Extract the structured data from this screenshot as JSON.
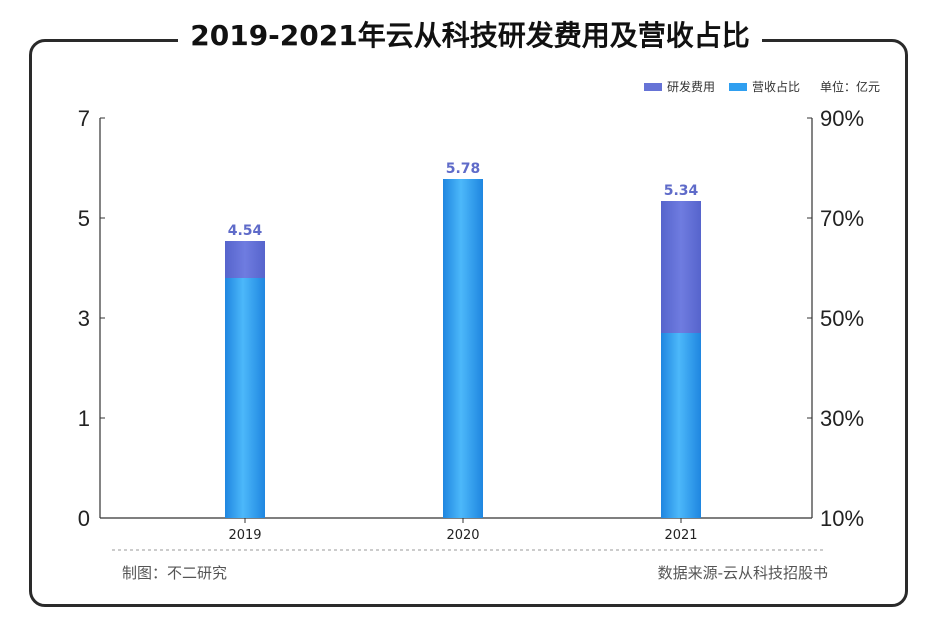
{
  "title": "2019-2021年云从科技研发费用及营收占比",
  "legend": {
    "series1": "研发费用",
    "series2": "营收占比",
    "unit": "单位：亿元"
  },
  "footer": {
    "made_by": "制图：不二研究",
    "source": "数据来源-云从科技招股书"
  },
  "colors": {
    "rd_expense": "#6673d6",
    "revenue_ratio": "#2f9ff0",
    "frame": "#2a2a2a"
  },
  "chart_data": {
    "type": "bar",
    "categories": [
      "2019",
      "2020",
      "2021"
    ],
    "series": [
      {
        "name": "研发费用",
        "values": [
          4.54,
          5.78,
          5.34
        ],
        "axis": "left"
      },
      {
        "name": "营收占比",
        "values": [
          58,
          78,
          47
        ],
        "axis": "right",
        "unit": "%"
      }
    ],
    "data_labels": [
      "4.54",
      "5.78",
      "5.34"
    ],
    "left_axis": {
      "ticks": [
        "0",
        "1",
        "3",
        "5",
        "7"
      ]
    },
    "right_axis": {
      "ticks": [
        "10%",
        "30%",
        "50%",
        "70%",
        "90%"
      ],
      "ylim": [
        10,
        90
      ]
    }
  }
}
